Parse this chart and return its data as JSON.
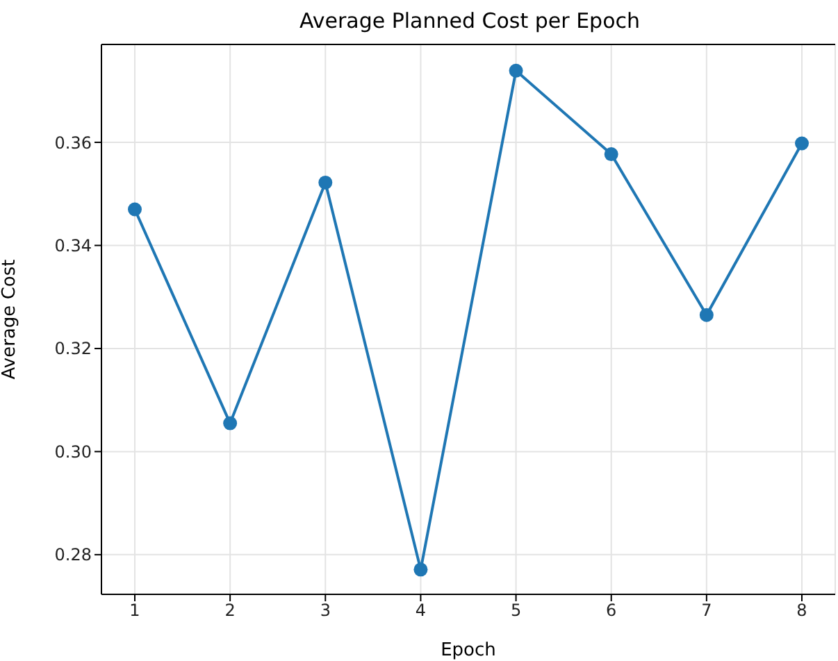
{
  "chart_data": {
    "type": "line",
    "title": "Average Planned Cost per Epoch",
    "xlabel": "Epoch",
    "ylabel": "Average Cost",
    "x": [
      1,
      2,
      3,
      4,
      5,
      6,
      7,
      8
    ],
    "series": [
      {
        "color": "#1f77b4",
        "values": [
          0.347,
          0.3055,
          0.3522,
          0.2771,
          0.3739,
          0.3577,
          0.3265,
          0.3598
        ]
      }
    ],
    "xlim": [
      0.65,
      8.35
    ],
    "xticks": [
      1,
      2,
      3,
      4,
      5,
      6,
      7,
      8
    ],
    "ylim": [
      0.2723,
      0.379
    ],
    "yticks": [
      {
        "value": 0.28,
        "label": "0.28"
      },
      {
        "value": 0.3,
        "label": "0.30"
      },
      {
        "value": 0.32,
        "label": "0.32"
      },
      {
        "value": 0.34,
        "label": "0.34"
      },
      {
        "value": 0.36,
        "label": "0.36"
      }
    ],
    "grid": true,
    "marker": "circle",
    "line_style": "solid"
  }
}
